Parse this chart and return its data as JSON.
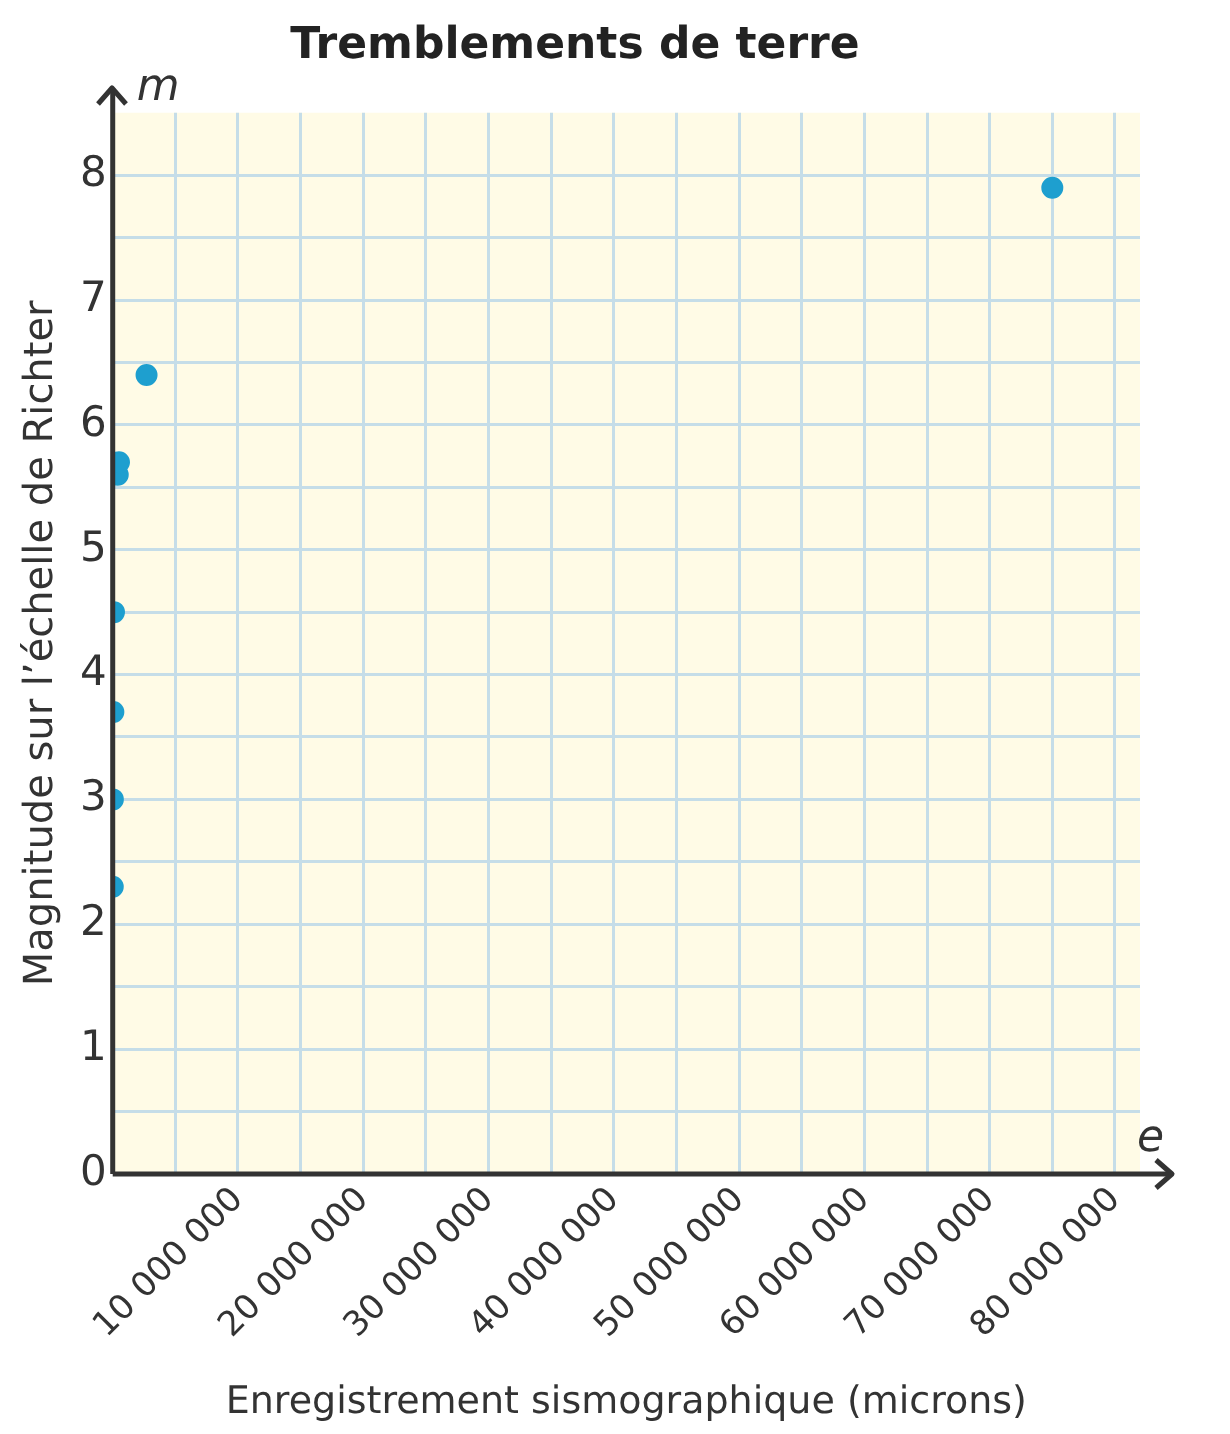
{
  "chart_data": {
    "type": "scatter",
    "title": "Tremblements de terre",
    "xlabel": "Enregistrement sismographique (microns)",
    "ylabel": "Magnitude sur l’échelle de Richter",
    "annotations": [
      "m",
      "e"
    ],
    "series": [
      {
        "color": "#1e9fcf",
        "x": [
          2000,
          10000,
          50000,
          100000,
          400000,
          500000,
          2700000,
          75000000
        ],
        "values": [
          2.3,
          3.0,
          3.7,
          4.5,
          5.6,
          5.7,
          6.4,
          7.9
        ]
      }
    ],
    "xlim": [
      0,
      82000000
    ],
    "xticks": [
      {
        "value": 0,
        "label": null
      },
      {
        "value": 5000000,
        "label": null
      },
      {
        "value": 10000000,
        "label": "10 000 000"
      },
      {
        "value": 15000000,
        "label": null
      },
      {
        "value": 20000000,
        "label": "20 000 000"
      },
      {
        "value": 25000000,
        "label": null
      },
      {
        "value": 30000000,
        "label": "30 000 000"
      },
      {
        "value": 35000000,
        "label": null
      },
      {
        "value": 40000000,
        "label": "40 000 000"
      },
      {
        "value": 45000000,
        "label": null
      },
      {
        "value": 50000000,
        "label": "50 000 000"
      },
      {
        "value": 55000000,
        "label": null
      },
      {
        "value": 60000000,
        "label": "60 000 000"
      },
      {
        "value": 65000000,
        "label": null
      },
      {
        "value": 70000000,
        "label": "70 000 000"
      },
      {
        "value": 75000000,
        "label": null
      },
      {
        "value": 80000000,
        "label": "80 000 000"
      }
    ],
    "ylim": [
      0,
      8.5
    ],
    "yticks": [
      0,
      {
        "value": 0.5,
        "label": null
      },
      1,
      {
        "value": 1.5,
        "label": null
      },
      2,
      {
        "value": 2.5,
        "label": null
      },
      3,
      {
        "value": 3.5,
        "label": null
      },
      4,
      {
        "value": 4.5,
        "label": null
      },
      5,
      {
        "value": 5.5,
        "label": null
      },
      6,
      {
        "value": 6.5,
        "label": null
      },
      7,
      {
        "value": 7.5,
        "label": null
      },
      8
    ],
    "grid": true,
    "marker": "circle",
    "legend": false
  }
}
